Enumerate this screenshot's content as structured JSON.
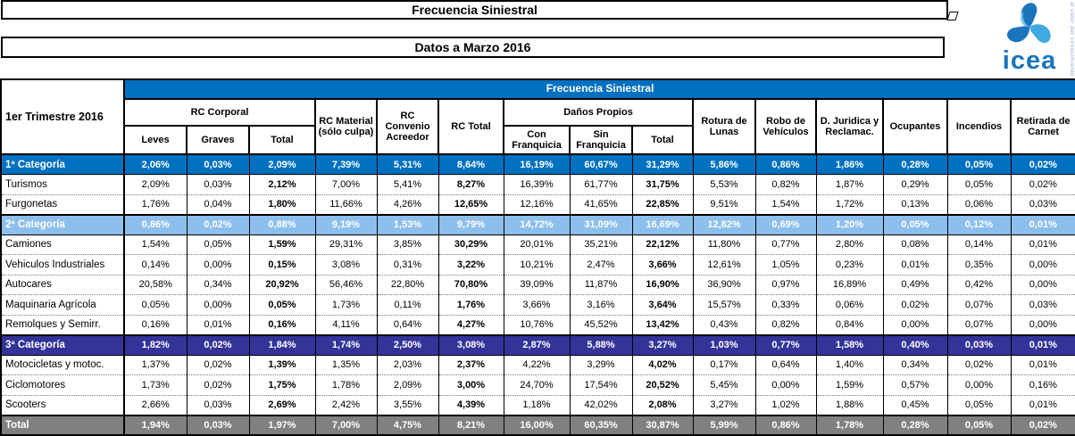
{
  "titles": {
    "main": "Frecuencia Siniestral",
    "sub": "Datos a Marzo 2016"
  },
  "logo": {
    "word": "icea",
    "slogan": "al valor del conocimiento"
  },
  "colors": {
    "header_blue": "#0070C0",
    "cat2_blue": "#8DBFEC",
    "cat3_blue": "#333399",
    "total_gray": "#808080",
    "logo_dark": "#1B75BC",
    "logo_light": "#3FA9E0"
  },
  "table": {
    "corner_label": "1er Trimestre 2016",
    "band_title": "Frecuencia Siniestral",
    "bold_columns": [
      2,
      5,
      8
    ],
    "header_groups": [
      {
        "label": "RC Corporal",
        "children": [
          "Leves",
          "Graves",
          "Total"
        ]
      },
      {
        "label": "RC Material (sólo culpa)"
      },
      {
        "label": "RC Convenio Acreedor"
      },
      {
        "label": "RC Total"
      },
      {
        "label": "Daños Propios",
        "children": [
          "Con Franquicia",
          "Sin Franquicia",
          "Total"
        ]
      },
      {
        "label": "Rotura de Lunas"
      },
      {
        "label": "Robo de Vehículos"
      },
      {
        "label": "D. Juridica y Reclamac."
      },
      {
        "label": "Ocupantes"
      },
      {
        "label": "Incendios"
      },
      {
        "label": "Retirada de Carnet"
      }
    ],
    "rows": [
      {
        "label": "1ª Categoría",
        "type": "cat1",
        "values": [
          "2,06%",
          "0,03%",
          "2,09%",
          "7,39%",
          "5,31%",
          "8,64%",
          "16,19%",
          "60,67%",
          "31,29%",
          "5,86%",
          "0,86%",
          "1,86%",
          "0,28%",
          "0,05%",
          "0,02%"
        ]
      },
      {
        "label": "Turismos",
        "type": "normal",
        "values": [
          "2,09%",
          "0,03%",
          "2,12%",
          "7,00%",
          "5,41%",
          "8,27%",
          "16,39%",
          "61,77%",
          "31,75%",
          "5,53%",
          "0,82%",
          "1,87%",
          "0,29%",
          "0,05%",
          "0,02%"
        ]
      },
      {
        "label": "Furgonetas",
        "type": "normal",
        "values": [
          "1,76%",
          "0,04%",
          "1,80%",
          "11,66%",
          "4,26%",
          "12,65%",
          "12,16%",
          "41,65%",
          "22,85%",
          "9,51%",
          "1,54%",
          "1,72%",
          "0,13%",
          "0,06%",
          "0,03%"
        ]
      },
      {
        "label": "2ª Categoría",
        "type": "cat2",
        "values": [
          "0,86%",
          "0,02%",
          "0,88%",
          "9,19%",
          "1,53%",
          "9,79%",
          "14,72%",
          "31,09%",
          "16,69%",
          "12,82%",
          "0,69%",
          "1,20%",
          "0,05%",
          "0,12%",
          "0,01%"
        ]
      },
      {
        "label": "Camiones",
        "type": "normal",
        "values": [
          "1,54%",
          "0,05%",
          "1,59%",
          "29,31%",
          "3,85%",
          "30,29%",
          "20,01%",
          "35,21%",
          "22,12%",
          "11,80%",
          "0,77%",
          "2,80%",
          "0,08%",
          "0,14%",
          "0,01%"
        ]
      },
      {
        "label": "Vehiculos Industriales",
        "type": "normal",
        "values": [
          "0,14%",
          "0,00%",
          "0,15%",
          "3,08%",
          "0,31%",
          "3,22%",
          "10,21%",
          "2,47%",
          "3,66%",
          "12,61%",
          "1,05%",
          "0,23%",
          "0,01%",
          "0,35%",
          "0,00%"
        ]
      },
      {
        "label": "Autocares",
        "type": "normal",
        "values": [
          "20,58%",
          "0,34%",
          "20,92%",
          "56,46%",
          "22,80%",
          "70,80%",
          "39,09%",
          "11,87%",
          "16,90%",
          "36,90%",
          "0,97%",
          "16,89%",
          "0,49%",
          "0,42%",
          "0,00%"
        ]
      },
      {
        "label": "Maquinaria Agrícola",
        "type": "normal",
        "values": [
          "0,05%",
          "0,00%",
          "0,05%",
          "1,73%",
          "0,11%",
          "1,76%",
          "3,66%",
          "3,16%",
          "3,64%",
          "15,57%",
          "0,33%",
          "0,06%",
          "0,02%",
          "0,07%",
          "0,03%"
        ]
      },
      {
        "label": "Remolques y Semirr.",
        "type": "normal",
        "values": [
          "0,16%",
          "0,01%",
          "0,16%",
          "4,11%",
          "0,64%",
          "4,27%",
          "10,76%",
          "45,52%",
          "13,42%",
          "0,43%",
          "0,82%",
          "0,84%",
          "0,00%",
          "0,07%",
          "0,00%"
        ]
      },
      {
        "label": "3ª Categoría",
        "type": "cat3",
        "values": [
          "1,82%",
          "0,02%",
          "1,84%",
          "1,74%",
          "2,50%",
          "3,08%",
          "2,87%",
          "5,88%",
          "3,27%",
          "1,03%",
          "0,77%",
          "1,58%",
          "0,40%",
          "0,03%",
          "0,01%"
        ]
      },
      {
        "label": "Motocicletas y motoc.",
        "type": "normal",
        "values": [
          "1,37%",
          "0,02%",
          "1,39%",
          "1,35%",
          "2,03%",
          "2,37%",
          "4,22%",
          "3,29%",
          "4,02%",
          "0,17%",
          "0,64%",
          "1,40%",
          "0,34%",
          "0,02%",
          "0,01%"
        ]
      },
      {
        "label": "Ciclomotores",
        "type": "normal",
        "values": [
          "1,73%",
          "0,02%",
          "1,75%",
          "1,78%",
          "2,09%",
          "3,00%",
          "24,70%",
          "17,54%",
          "20,52%",
          "5,45%",
          "0,00%",
          "1,59%",
          "0,57%",
          "0,00%",
          "0,16%"
        ]
      },
      {
        "label": "Scooters",
        "type": "normal",
        "values": [
          "2,66%",
          "0,03%",
          "2,69%",
          "2,42%",
          "3,55%",
          "4,39%",
          "1,18%",
          "42,02%",
          "2,08%",
          "3,27%",
          "1,02%",
          "1,88%",
          "0,45%",
          "0,05%",
          "0,01%"
        ]
      },
      {
        "label": "Total",
        "type": "total",
        "values": [
          "1,94%",
          "0,03%",
          "1,97%",
          "7,00%",
          "4,75%",
          "8,21%",
          "16,00%",
          "60,35%",
          "30,87%",
          "5,99%",
          "0,86%",
          "1,78%",
          "0,28%",
          "0,05%",
          "0,02%"
        ]
      }
    ]
  }
}
